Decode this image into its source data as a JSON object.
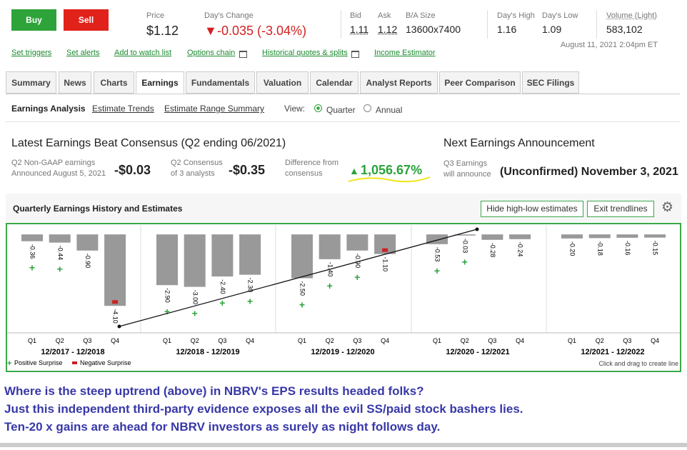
{
  "header": {
    "buy": "Buy",
    "sell": "Sell"
  },
  "quote": {
    "price_label": "Price",
    "price": "$1.12",
    "change_label": "Day's Change",
    "change": "-0.035 (-3.04%)",
    "bid_label": "Bid",
    "bid": "1.11",
    "ask_label": "Ask",
    "ask": "1.12",
    "size_label": "B/A Size",
    "size": "13600x7400",
    "high_label": "Day's High",
    "high": "1.16",
    "low_label": "Day's Low",
    "low": "1.09",
    "volume_label": "Volume (Light)",
    "volume": "583,102",
    "timestamp": "August 11, 2021 2:04pm ET"
  },
  "links": [
    "Set triggers",
    "Set alerts",
    "Add to watch list",
    "Options chain",
    "Historical quotes & splits",
    "Income Estimator"
  ],
  "tabs": {
    "items": [
      "Summary",
      "News",
      "Charts",
      "Earnings",
      "Fundamentals",
      "Valuation",
      "Calendar",
      "Analyst Reports",
      "Peer Comparison",
      "SEC Filings"
    ],
    "active": 3
  },
  "subnav": {
    "items": [
      "Earnings Analysis",
      "Estimate Trends",
      "Estimate Range Summary"
    ],
    "view_label": "View:",
    "options": [
      "Quarter",
      "Annual"
    ],
    "selected": 0
  },
  "latest": {
    "title": "Latest Earnings Beat Consensus (Q2 ending 06/2021)",
    "items": [
      {
        "label_lines": [
          "Q2 Non-GAAP earnings",
          "Announced August 5, 2021"
        ],
        "value": "-$0.03"
      },
      {
        "label_lines": [
          "Q2 Consensus",
          "of 3 analysts"
        ],
        "value": "-$0.35"
      },
      {
        "label_lines": [
          "Difference from",
          "consensus"
        ],
        "value": "1,056.67%"
      }
    ]
  },
  "next": {
    "title": "Next Earnings Announcement",
    "label_lines": [
      "Q3 Earnings",
      "will announce"
    ],
    "value": "(Unconfirmed) November 3, 2021"
  },
  "chart": {
    "type": "bar",
    "title": "Quarterly Earnings History and Estimates",
    "buttons": [
      "Hide high-low estimates",
      "Exit trendlines"
    ],
    "categories": [
      "Q1",
      "Q2",
      "Q3",
      "Q4",
      "Q1",
      "Q2",
      "Q3",
      "Q4",
      "Q1",
      "Q2",
      "Q3",
      "Q4",
      "Q1",
      "Q2",
      "Q3",
      "Q4",
      "Q1",
      "Q2",
      "Q3",
      "Q4"
    ],
    "groups": [
      "12/2017 - 12/2018",
      "12/2018 - 12/2019",
      "12/2019 - 12/2020",
      "12/2020 - 12/2021",
      "12/2021 - 12/2022"
    ],
    "values": [
      -0.36,
      -0.44,
      -0.9,
      -4.1,
      -2.9,
      -3.0,
      -2.4,
      -2.3,
      -2.5,
      -1.4,
      -0.9,
      -1.1,
      -0.53,
      -0.03,
      -0.28,
      -0.24,
      -0.2,
      -0.18,
      -0.16,
      -0.15
    ],
    "value_labels": [
      "-0.36",
      "-0.44",
      "-0.90",
      "-4.10",
      "-2.90",
      "-3.00",
      "-2.40",
      "-2.30",
      "-2.50",
      "-1.40",
      "-0.90",
      "-1.10",
      "-0.53",
      "-0.03",
      "-0.28",
      "-0.24",
      "-0.20",
      "-0.18",
      "-0.16",
      "-0.15"
    ],
    "surprise": [
      "positive",
      "positive",
      null,
      "negative",
      "positive",
      "positive",
      "positive",
      "positive",
      "positive",
      "positive",
      "positive",
      "negative",
      "positive",
      "positive",
      null,
      null,
      null,
      null,
      null,
      null
    ],
    "surprise_colors": {
      "positive": "#2aa33a",
      "negative": "#cc2222"
    },
    "legend": [
      "Positive Surprise",
      "Negative Surprise"
    ],
    "hint": "Click and drag to create line"
  },
  "comment": {
    "lines": [
      "Where is the steep uptrend (above) in NBRV's EPS results headed folks?",
      "Just this independent third-party evidence exposes all the evil SS/paid stock bashers lies.",
      "Ten-20 x gains are ahead for NBRV investors as surely as night follows day."
    ]
  }
}
